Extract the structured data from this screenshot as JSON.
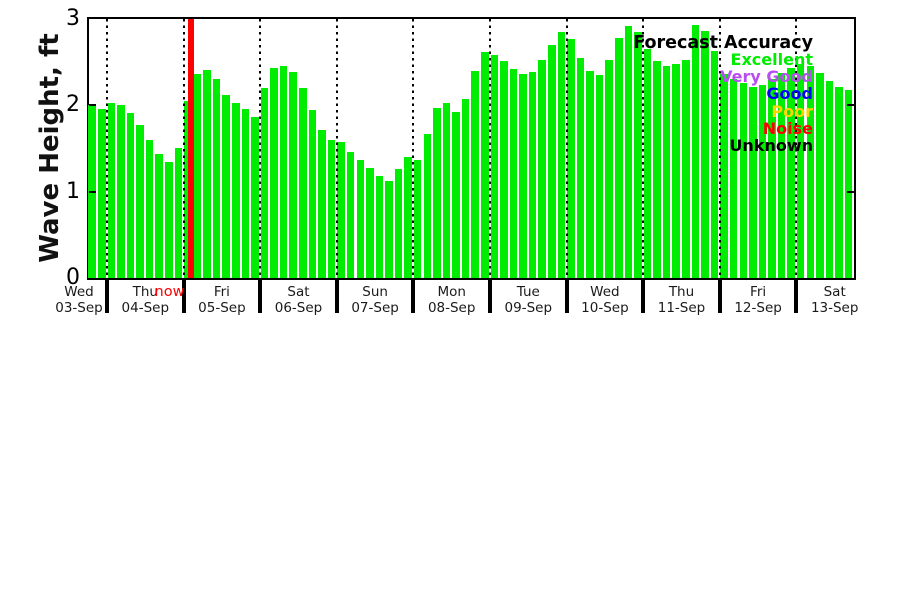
{
  "chart_data": {
    "type": "bar",
    "title": "",
    "ylabel": "Wave Height, ft",
    "xlabel": "",
    "ylim": [
      0,
      3
    ],
    "yticks": [
      "0",
      "1",
      "2",
      "3"
    ],
    "grid": "dotted vertical lines at day boundaries",
    "bar_color": "#00ec00",
    "now_marker": {
      "label": "now",
      "color": "#ff0000",
      "position_day": "05-Sep",
      "position_slot": 0
    },
    "days": [
      {
        "day": "Wed",
        "date": "03-Sep",
        "values": [
          2.0,
          1.96
        ]
      },
      {
        "day": "Thu",
        "date": "04-Sep",
        "values": [
          2.03,
          2.0,
          1.91,
          1.77,
          1.6,
          1.44,
          1.34,
          1.51
        ]
      },
      {
        "day": "Fri",
        "date": "05-Sep",
        "values": [
          2.05,
          2.36,
          2.41,
          2.3,
          2.12,
          2.03,
          1.96,
          1.87
        ]
      },
      {
        "day": "Sat",
        "date": "06-Sep",
        "values": [
          2.2,
          2.43,
          2.46,
          2.39,
          2.2,
          1.95,
          1.72,
          1.6
        ]
      },
      {
        "day": "Sun",
        "date": "07-Sep",
        "values": [
          1.57,
          1.46,
          1.37,
          1.27,
          1.18,
          1.12,
          1.26,
          1.4
        ]
      },
      {
        "day": "Mon",
        "date": "08-Sep",
        "values": [
          1.37,
          1.67,
          1.97,
          2.03,
          1.92,
          2.07,
          2.4,
          2.62
        ]
      },
      {
        "day": "Tue",
        "date": "09-Sep",
        "values": [
          2.58,
          2.51,
          2.42,
          2.36,
          2.39,
          2.53,
          2.7,
          2.85
        ]
      },
      {
        "day": "Wed",
        "date": "10-Sep",
        "values": [
          2.77,
          2.55,
          2.4,
          2.35,
          2.53,
          2.78,
          2.92,
          2.85
        ]
      },
      {
        "day": "Thu",
        "date": "11-Sep",
        "values": [
          2.65,
          2.51,
          2.45,
          2.48,
          2.53,
          2.93,
          2.86,
          2.63
        ]
      },
      {
        "day": "Fri",
        "date": "12-Sep",
        "values": [
          2.36,
          2.3,
          2.26,
          2.21,
          2.24,
          2.31,
          2.38,
          2.43
        ]
      },
      {
        "day": "Sat",
        "date": "13-Sep",
        "values": [
          2.48,
          2.45,
          2.38,
          2.28,
          2.21,
          2.18
        ]
      }
    ],
    "legend": {
      "title": "Forecast Accuracy",
      "position": "top-right",
      "entries": [
        {
          "label": "Excellent",
          "color": "#00ec00"
        },
        {
          "label": "Very Good",
          "color": "#b84df0"
        },
        {
          "label": "Good",
          "color": "#0000ff"
        },
        {
          "label": "Poor",
          "color": "#ffd400"
        },
        {
          "label": "Noise",
          "color": "#ff0000"
        },
        {
          "label": "Unknown",
          "color": "#000000"
        }
      ]
    }
  }
}
